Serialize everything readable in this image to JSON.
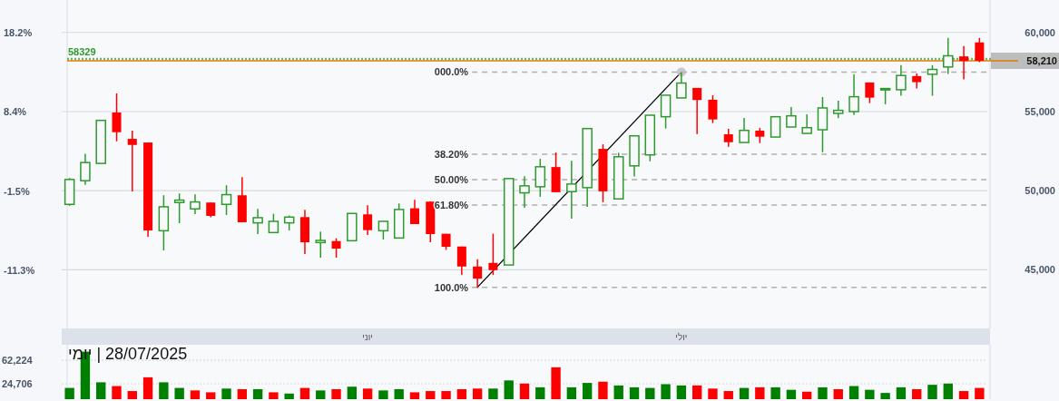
{
  "chart_data": [
    {
      "type": "candlestick",
      "categories": [
        null,
        null,
        null,
        null,
        null,
        null,
        null,
        null,
        null,
        null,
        null,
        null,
        null,
        null,
        null,
        null,
        null,
        null,
        null,
        "יוני",
        null,
        null,
        null,
        null,
        null,
        null,
        null,
        null,
        null,
        null,
        null,
        null,
        null,
        null,
        null,
        null,
        null,
        null,
        null,
        "יולי",
        null,
        null,
        null,
        null,
        null,
        null,
        null,
        null,
        null,
        null,
        null,
        null,
        null,
        null,
        null,
        null,
        null,
        null,
        null
      ],
      "ohlc": [
        [
          49139,
          50805,
          49043,
          50710
        ],
        [
          50633,
          52338,
          50364,
          51782
        ],
        [
          51725,
          54445,
          51725,
          54445
        ],
        [
          54943,
          56150,
          53123,
          53698
        ],
        [
          53276,
          53794,
          49962,
          52893
        ],
        [
          53046,
          53046,
          47089,
          47491
        ],
        [
          47472,
          49713,
          46227,
          48985
        ],
        [
          49254,
          49828,
          47951,
          49407
        ],
        [
          48851,
          49771,
          48526,
          49292
        ],
        [
          49254,
          49254,
          48315,
          48411
        ],
        [
          49139,
          50345,
          48468,
          49752
        ],
        [
          49713,
          50863,
          48008,
          48008
        ],
        [
          47970,
          48851,
          47261,
          48296
        ],
        [
          47357,
          48545,
          47357,
          48066
        ],
        [
          47970,
          48430,
          47491,
          48334
        ],
        [
          48334,
          48794,
          45997,
          46744
        ],
        [
          46725,
          47414,
          45767,
          46859
        ],
        [
          46821,
          46993,
          45767,
          46342
        ],
        [
          46840,
          48564,
          46840,
          48564
        ],
        [
          48506,
          49081,
          47204,
          47510
        ],
        [
          47472,
          48066,
          46916,
          48066
        ],
        [
          47012,
          49196,
          47012,
          48813
        ],
        [
          48889,
          49426,
          47893,
          47893
        ],
        [
          49311,
          49311,
          46744,
          47261
        ],
        [
          47280,
          47280,
          46265,
          46457
        ],
        [
          46476,
          46476,
          44675,
          45211
        ],
        [
          45211,
          45671,
          43870,
          44445
        ],
        [
          45441,
          47280,
          44675,
          44981
        ],
        [
          45307,
          50767,
          45307,
          50767
        ],
        [
          49866,
          50920,
          48928,
          50307
        ],
        [
          50250,
          52012,
          49617,
          51514
        ],
        [
          51495,
          52414,
          49905,
          49905
        ],
        [
          49943,
          51897,
          48238,
          50422
        ],
        [
          50193,
          53928,
          48985,
          53928
        ],
        [
          52644,
          52932,
          49273,
          49962
        ],
        [
          49483,
          52395,
          49483,
          52146
        ],
        [
          51571,
          53468,
          50901,
          53468
        ],
        [
          52261,
          54770,
          51859,
          54770
        ],
        [
          54675,
          56035,
          53928,
          56035
        ],
        [
          55863,
          57472,
          55863,
          56802
        ],
        [
          56495,
          56495,
          53583,
          55729
        ],
        [
          55748,
          56035,
          54273,
          54503
        ],
        [
          53564,
          53909,
          52778,
          53066
        ],
        [
          53046,
          54598,
          53046,
          53813
        ],
        [
          53794,
          53966,
          53008,
          53411
        ],
        [
          53391,
          54675,
          53391,
          54675
        ],
        [
          54024,
          55288,
          54024,
          54732
        ],
        [
          53621,
          54828,
          53621,
          53985
        ],
        [
          53851,
          55920,
          52433,
          55231
        ],
        [
          54886,
          55690,
          54579,
          55077
        ],
        [
          55001,
          57357,
          54790,
          55939
        ],
        [
          56839,
          56839,
          55537,
          55882
        ],
        [
          56380,
          56456,
          55460,
          56456
        ],
        [
          56380,
          57932,
          55997,
          57280
        ],
        [
          57242,
          57414,
          56456,
          56859
        ],
        [
          57357,
          57932,
          55997,
          57663
        ],
        [
          57817,
          59656,
          57376,
          58525
        ],
        [
          58487,
          59138,
          57031,
          58200
        ],
        [
          59368,
          59656,
          58123,
          58210
        ]
      ],
      "colors": [
        "#2e9a2e",
        "#2e9a2e",
        "#2e9a2e",
        "#ff0000",
        "#ff0000",
        "#ff0000",
        "#2e9a2e",
        "#2e9a2e",
        "#2e9a2e",
        "#ff0000",
        "#2e9a2e",
        "#ff0000",
        "#2e9a2e",
        "#2e9a2e",
        "#2e9a2e",
        "#ff0000",
        "#2e9a2e",
        "#ff0000",
        "#2e9a2e",
        "#ff0000",
        "#2e9a2e",
        "#2e9a2e",
        "#ff0000",
        "#ff0000",
        "#ff0000",
        "#ff0000",
        "#ff0000",
        "#ff0000",
        "#2e9a2e",
        "#2e9a2e",
        "#2e9a2e",
        "#ff0000",
        "#2e9a2e",
        "#2e9a2e",
        "#ff0000",
        "#2e9a2e",
        "#2e9a2e",
        "#2e9a2e",
        "#2e9a2e",
        "#2e9a2e",
        "#ff0000",
        "#ff0000",
        "#ff0000",
        "#2e9a2e",
        "#ff0000",
        "#2e9a2e",
        "#2e9a2e",
        "#2e9a2e",
        "#2e9a2e",
        "#2e9a2e",
        "#2e9a2e",
        "#ff0000",
        "#2e9a2e",
        "#2e9a2e",
        "#ff0000",
        "#2e9a2e",
        "#2e9a2e",
        "#ff0000",
        "#ff0000"
      ],
      "series": [
        {
          "type": "line",
          "values": [
            null,
            null,
            null,
            null,
            null,
            null,
            null,
            null,
            null,
            null,
            null,
            null,
            null,
            null,
            null,
            null,
            null,
            null,
            null,
            null,
            null,
            null,
            null,
            null,
            null,
            null,
            43900,
            null,
            null,
            null,
            null,
            null,
            null,
            null,
            null,
            null,
            null,
            null,
            null,
            57500,
            null,
            null,
            null,
            null,
            null,
            null,
            null,
            null,
            null,
            null,
            null,
            null,
            null,
            null,
            null,
            null,
            null,
            null,
            null
          ],
          "color": "#000000"
        }
      ],
      "ylim": [
        41300,
        62050
      ],
      "yticks": [
        {
          "value": 45000,
          "label": "45,000"
        },
        {
          "value": 50000,
          "label": "50,000"
        },
        {
          "value": 55000,
          "label": "55,000"
        },
        {
          "value": 60000,
          "label": "60,000"
        }
      ],
      "y2lim": [
        -18.45,
        22.25
      ],
      "y2ticks": [
        {
          "value": -11.3,
          "label": "-11.3%"
        },
        {
          "value": -1.5,
          "label": "-1.5%"
        },
        {
          "value": 8.4,
          "label": "8.4%"
        },
        {
          "value": 18.2,
          "label": "18.2%"
        }
      ],
      "grid": "y",
      "ref_lines": [
        {
          "axis": "y",
          "value": 58329,
          "label": "58329",
          "color": "#2e9a2e",
          "line_style": "dotted"
        },
        {
          "axis": "y",
          "value": 58210,
          "label": "58,210",
          "color": "#e07b00",
          "line_style": "solid"
        },
        {
          "axis": "y",
          "value": 57500,
          "color": "#b0b0b0",
          "line_style": "dashed"
        },
        {
          "axis": "y",
          "value": 52300,
          "color": "#b0b0b0",
          "line_style": "dashed"
        },
        {
          "axis": "y",
          "value": 50700,
          "color": "#b0b0b0",
          "line_style": "dashed"
        },
        {
          "axis": "y",
          "value": 49100,
          "color": "#b0b0b0",
          "line_style": "dashed"
        },
        {
          "axis": "y",
          "value": 43900,
          "color": "#b0b0b0",
          "line_style": "dashed"
        }
      ],
      "annotations": [
        "000.0%",
        "38.20%",
        "50.00%",
        "61.80%",
        "100.0%"
      ]
    },
    {
      "type": "bar",
      "categories": [
        null,
        null,
        null,
        null,
        null,
        null,
        null,
        null,
        null,
        null,
        null,
        null,
        null,
        null,
        null,
        null,
        null,
        null,
        null,
        null,
        null,
        null,
        null,
        null,
        null,
        null,
        null,
        null,
        null,
        null,
        null,
        null,
        null,
        null,
        null,
        null,
        null,
        null,
        null,
        null,
        null,
        null,
        null,
        null,
        null,
        null,
        null,
        null,
        null,
        null,
        null,
        null,
        null,
        null,
        null,
        null,
        null,
        null,
        null
      ],
      "values": [
        18000,
        76000,
        27000,
        21000,
        13000,
        35000,
        27000,
        18000,
        14000,
        11000,
        17000,
        16000,
        16000,
        11000,
        9000,
        18000,
        14000,
        16000,
        20000,
        17000,
        14000,
        16000,
        11000,
        13000,
        13000,
        16000,
        17000,
        17000,
        30000,
        25000,
        19000,
        51000,
        19000,
        26000,
        28000,
        22000,
        19000,
        18000,
        24000,
        22000,
        22000,
        17000,
        13000,
        18000,
        19000,
        19000,
        15000,
        12000,
        19000,
        16000,
        21000,
        15000,
        10000,
        19000,
        16000,
        23000,
        25000,
        13000,
        18000
      ],
      "colors": [
        "#008000",
        "#008000",
        "#008000",
        "#ff0000",
        "#ff0000",
        "#ff0000",
        "#008000",
        "#008000",
        "#ff0000",
        "#ff0000",
        "#008000",
        "#ff0000",
        "#008000",
        "#ff0000",
        "#008000",
        "#ff0000",
        "#008000",
        "#ff0000",
        "#008000",
        "#ff0000",
        "#008000",
        "#008000",
        "#ff0000",
        "#ff0000",
        "#ff0000",
        "#ff0000",
        "#ff0000",
        "#008000",
        "#008000",
        "#ff0000",
        "#008000",
        "#ff0000",
        "#008000",
        "#008000",
        "#ff0000",
        "#008000",
        "#008000",
        "#008000",
        "#008000",
        "#008000",
        "#ff0000",
        "#ff0000",
        "#ff0000",
        "#008000",
        "#ff0000",
        "#008000",
        "#008000",
        "#ff0000",
        "#008000",
        "#ff0000",
        "#008000",
        "#008000",
        "#008000",
        "#008000",
        "#ff0000",
        "#008000",
        "#008000",
        "#ff0000",
        "#ff0000"
      ],
      "ylim": [
        0,
        87100
      ],
      "yticks": [
        {
          "value": 24706,
          "label": "24,706"
        },
        {
          "value": 62224,
          "label": "62,224"
        }
      ],
      "grid": "y",
      "annotations": [
        "28/07/2025 | יומי"
      ]
    }
  ]
}
